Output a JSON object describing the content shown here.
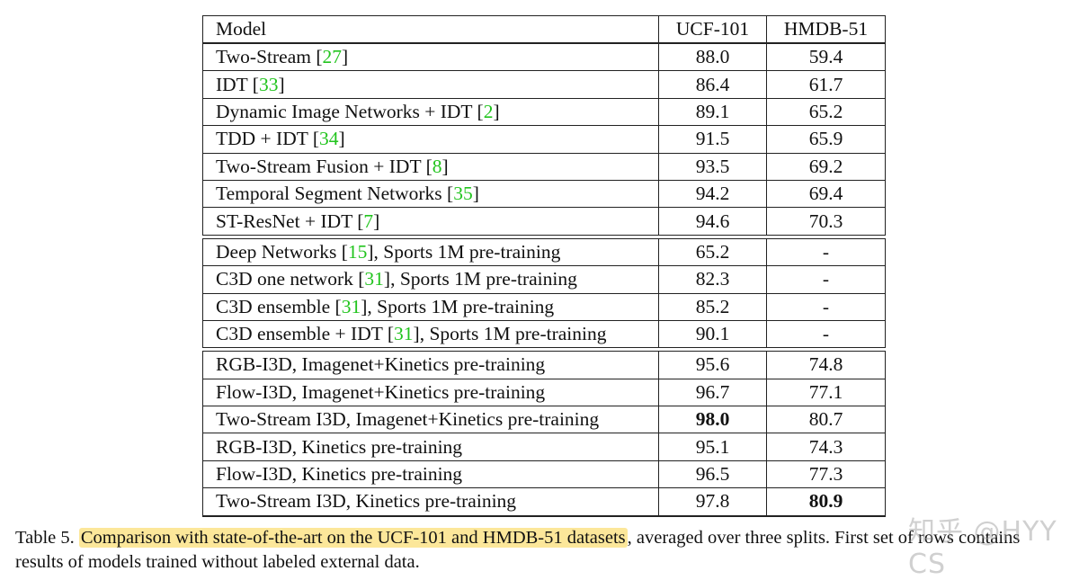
{
  "table": {
    "headers": [
      "Model",
      "UCF-101",
      "HMDB-51"
    ],
    "groups": [
      {
        "rows": [
          {
            "model_pre": "Two-Stream [",
            "cite": "27",
            "model_post": "]",
            "ucf": "88.0",
            "hmdb": "59.4"
          },
          {
            "model_pre": "IDT [",
            "cite": "33",
            "model_post": "]",
            "ucf": "86.4",
            "hmdb": "61.7"
          },
          {
            "model_pre": "Dynamic Image Networks + IDT [",
            "cite": "2",
            "model_post": "]",
            "ucf": "89.1",
            "hmdb": "65.2"
          },
          {
            "model_pre": "TDD + IDT [",
            "cite": "34",
            "model_post": "]",
            "ucf": "91.5",
            "hmdb": "65.9"
          },
          {
            "model_pre": "Two-Stream Fusion + IDT [",
            "cite": "8",
            "model_post": "]",
            "ucf": "93.5",
            "hmdb": "69.2"
          },
          {
            "model_pre": "Temporal Segment Networks [",
            "cite": "35",
            "model_post": "]",
            "ucf": "94.2",
            "hmdb": "69.4"
          },
          {
            "model_pre": "ST-ResNet + IDT [",
            "cite": "7",
            "model_post": "]",
            "ucf": "94.6",
            "hmdb": "70.3"
          }
        ]
      },
      {
        "rows": [
          {
            "model_pre": "Deep Networks [",
            "cite": "15",
            "model_post": "], Sports 1M pre-training",
            "ucf": "65.2",
            "hmdb": "-"
          },
          {
            "model_pre": "C3D one network [",
            "cite": "31",
            "model_post": "], Sports 1M pre-training",
            "ucf": "82.3",
            "hmdb": "-"
          },
          {
            "model_pre": "C3D ensemble [",
            "cite": "31",
            "model_post": "], Sports 1M pre-training",
            "ucf": "85.2",
            "hmdb": "-"
          },
          {
            "model_pre": "C3D ensemble + IDT [",
            "cite": "31",
            "model_post": "], Sports 1M pre-training",
            "ucf": "90.1",
            "hmdb": "-"
          }
        ]
      },
      {
        "rows": [
          {
            "model_pre": "RGB-I3D, Imagenet+Kinetics pre-training",
            "cite": "",
            "model_post": "",
            "ucf": "95.6",
            "hmdb": "74.8"
          },
          {
            "model_pre": "Flow-I3D, Imagenet+Kinetics pre-training",
            "cite": "",
            "model_post": "",
            "ucf": "96.7",
            "hmdb": "77.1"
          },
          {
            "model_pre": "Two-Stream I3D, Imagenet+Kinetics pre-training",
            "cite": "",
            "model_post": "",
            "ucf": "98.0",
            "hmdb": "80.7",
            "ucf_bold": true
          },
          {
            "model_pre": "RGB-I3D, Kinetics pre-training",
            "cite": "",
            "model_post": "",
            "ucf": "95.1",
            "hmdb": "74.3"
          },
          {
            "model_pre": "Flow-I3D, Kinetics pre-training",
            "cite": "",
            "model_post": "",
            "ucf": "96.5",
            "hmdb": "77.3"
          },
          {
            "model_pre": "Two-Stream I3D, Kinetics pre-training",
            "cite": "",
            "model_post": "",
            "ucf": "97.8",
            "hmdb": "80.9",
            "hmdb_bold": true
          }
        ]
      }
    ]
  },
  "caption": {
    "label": "Table 5.",
    "highlighted": "Comparison with state-of-the-art on the UCF-101 and HMDB-51 datasets",
    "rest_line1": ", averaged over three splits. First set of rows contains",
    "line2": "results of models trained without labeled external data."
  },
  "watermark": "知乎 @HYY CS",
  "colors": {
    "citation": "#22c41e",
    "highlight": "#fce79a"
  }
}
